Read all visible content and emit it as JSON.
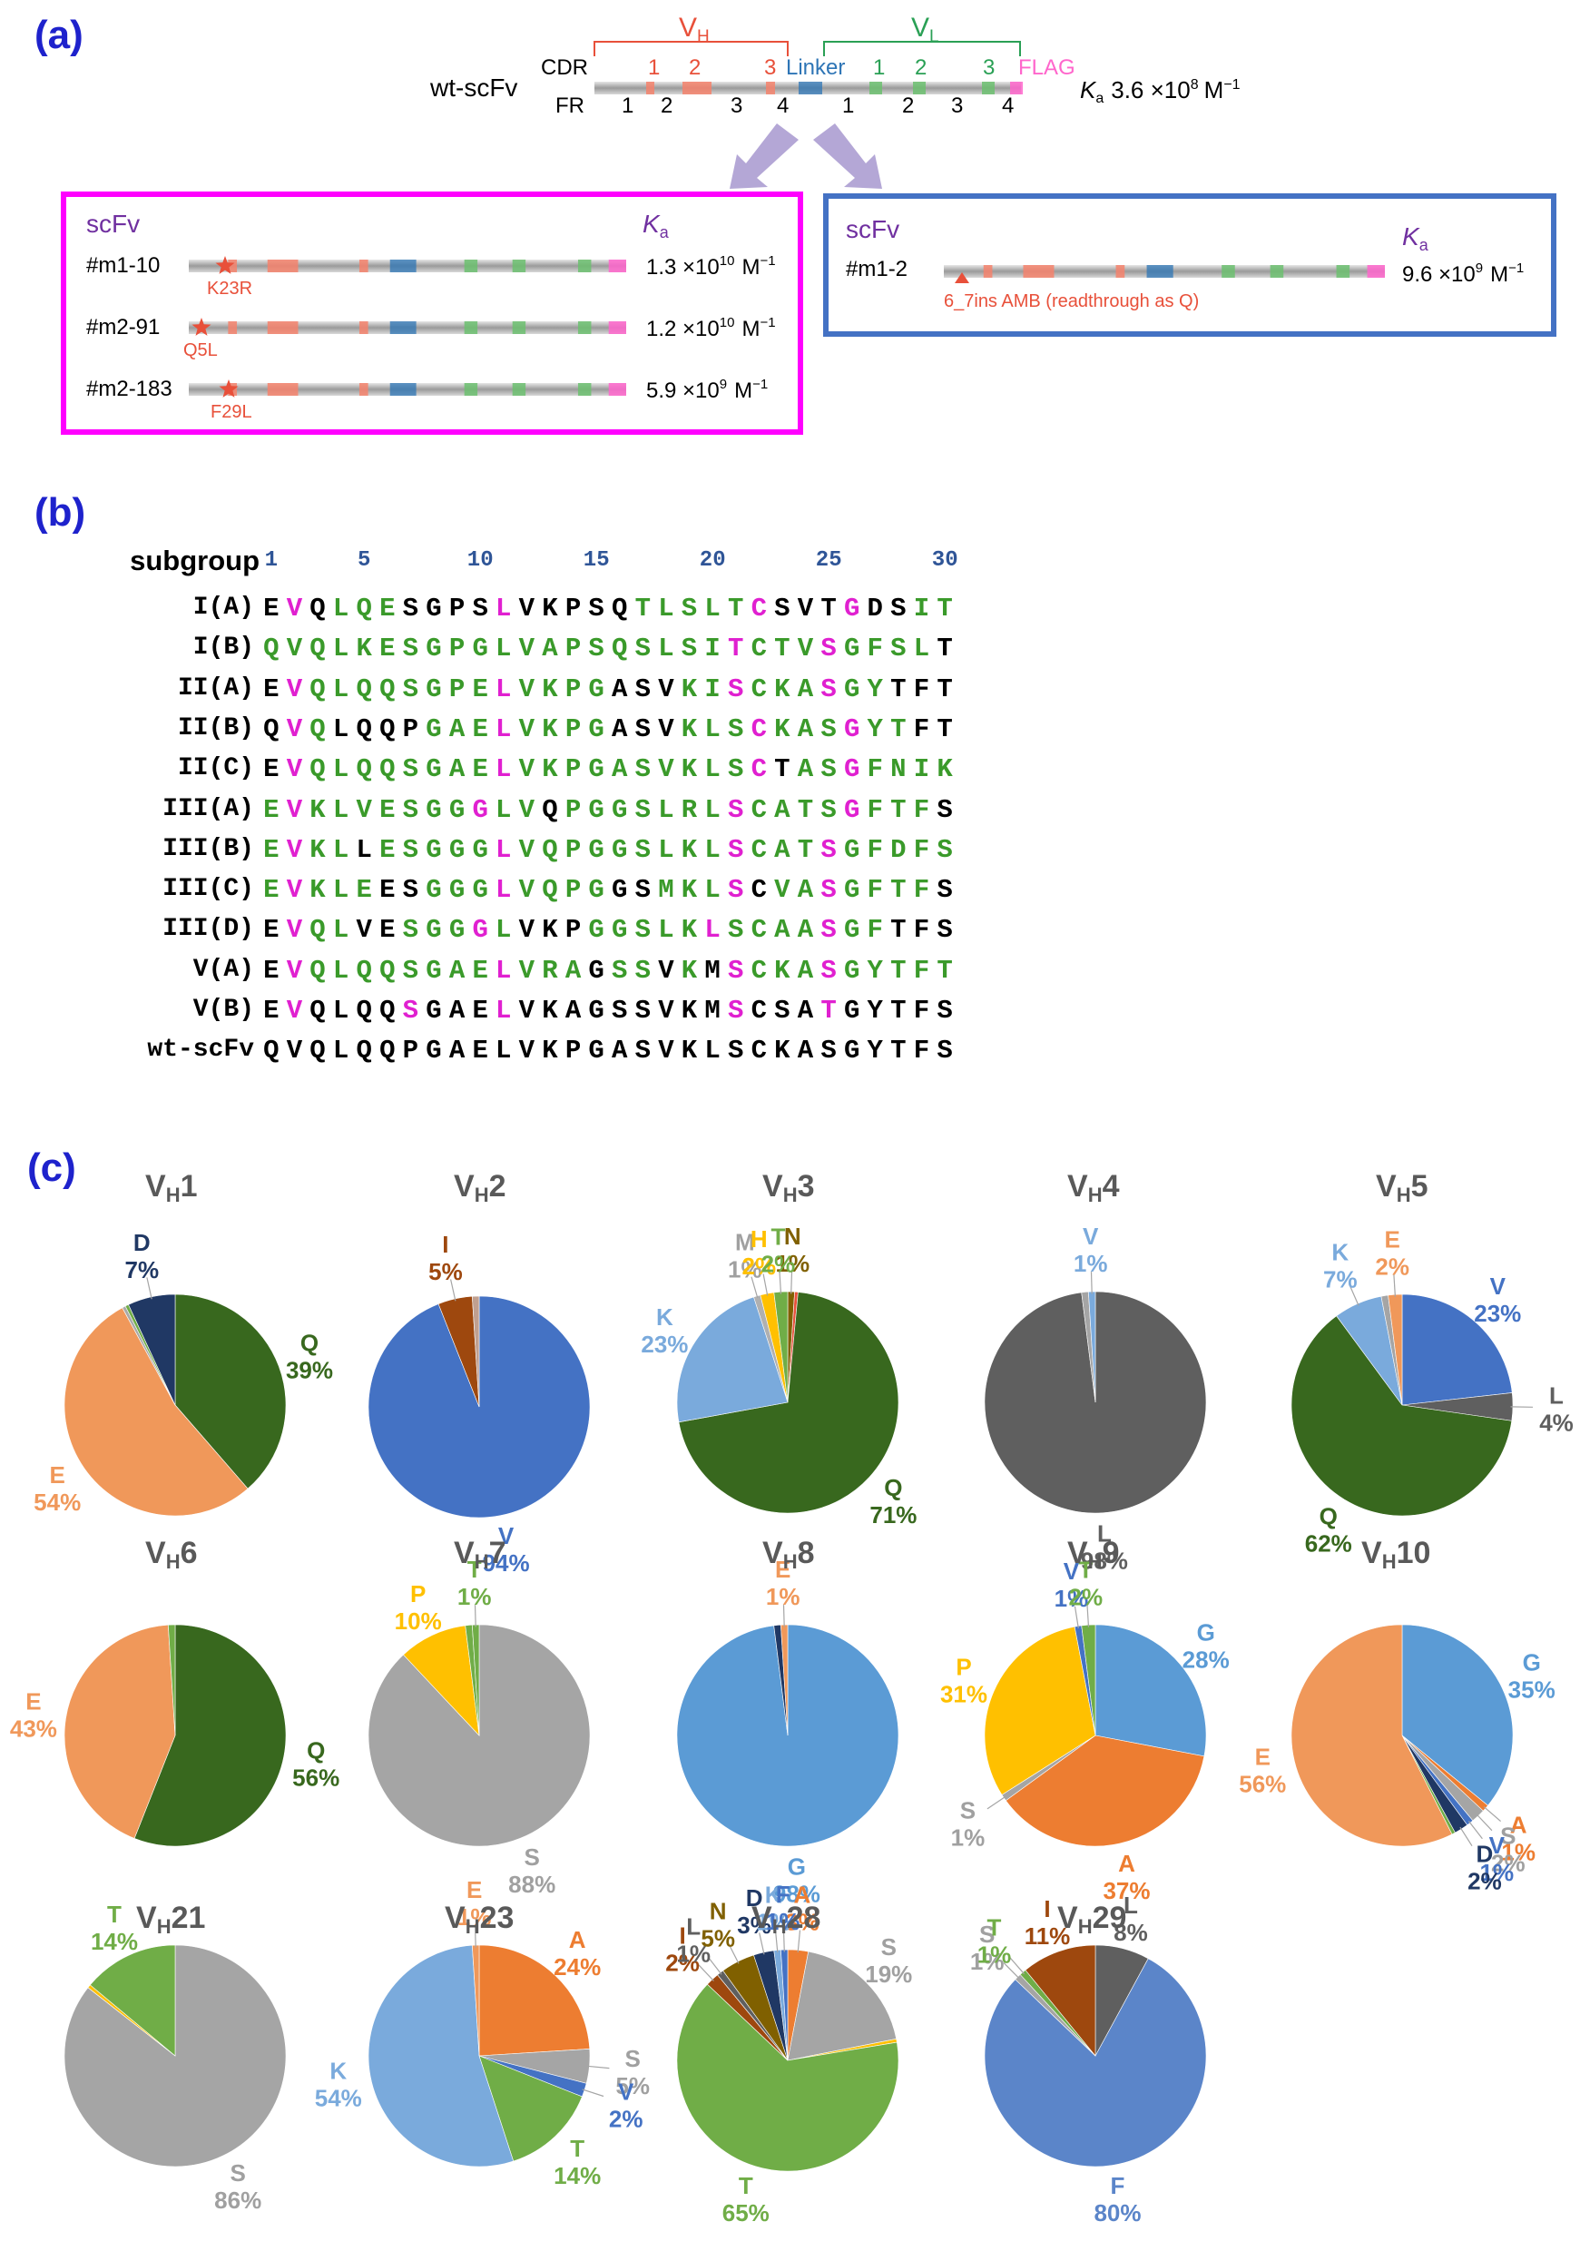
{
  "panels": {
    "a": "(a)",
    "b": "(b)",
    "c": "(c)"
  },
  "panel_a": {
    "wt_label": "wt-scFv",
    "cdr_label": "CDR",
    "fr_label": "FR",
    "vh_label": "V",
    "vh_sub": "H",
    "vl_label": "V",
    "vl_sub": "L",
    "linker_label": "Linker",
    "flag_label": "FLAG",
    "cdr_vh": [
      "1",
      "2",
      "3"
    ],
    "cdr_vl": [
      "1",
      "2",
      "3"
    ],
    "fr_vh": [
      "1",
      "2",
      "3",
      "4"
    ],
    "fr_vl": [
      "1",
      "2",
      "3",
      "4"
    ],
    "wt_ka": "K",
    "wt_ka_sub": "a",
    "wt_ka_value": "3.6 ×10",
    "wt_ka_exp": "8",
    "wt_ka_unit": "M",
    "wt_ka_unit_exp": "−1",
    "left_box": {
      "header": "scFv",
      "ka_header": "K",
      "ka_sub": "a",
      "rows": [
        {
          "name": "#m1-10",
          "mutation": "K23R",
          "mantissa": "1.3 ×10",
          "exp": "10",
          "unit": "M",
          "unit_exp": "−1"
        },
        {
          "name": "#m2-91",
          "mutation": "Q5L",
          "mantissa": "1.2 ×10",
          "exp": "10",
          "unit": "M",
          "unit_exp": "−1"
        },
        {
          "name": "#m2-183",
          "mutation": "F29L",
          "mantissa": "5.9 ×10",
          "exp": "9",
          "unit": "M",
          "unit_exp": "−1"
        }
      ]
    },
    "right_box": {
      "header": "scFv",
      "ka_header": "K",
      "ka_sub": "a",
      "rows": [
        {
          "name": "#m1-2",
          "mutation": "6_7ins AMB (readthrough as Q)",
          "mantissa": "9.6 ×10",
          "exp": "9",
          "unit": "M",
          "unit_exp": "−1"
        }
      ]
    },
    "colors": {
      "cdr": "#f4836c",
      "linker": "#2e75b6",
      "vl_cdr": "#6cc070",
      "flag": "#ff66cc",
      "box_left": "#ff00ff",
      "box_right": "#4472c4",
      "arrow": "#b4a7d6",
      "vh_bracket": "#e8503a",
      "vl_bracket": "#2aa055"
    }
  },
  "panel_b": {
    "header": "subgroup",
    "positions": [
      "1",
      "5",
      "10",
      "15",
      "20",
      "25",
      "30"
    ],
    "rows": [
      {
        "name": "I(A)",
        "seq": "EVQLQESGPSLVKPSQTLSLTCSVTGDSIT",
        "colors": "kmkgggkkkkmkkkkkgggggmkkkmkkgg"
      },
      {
        "name": "I(B)",
        "seq": "QVQLKESGPGLVAPSQSLSITCTVSGFSLT",
        "colors": "ggggggggggggggggggggmgggmggggk"
      },
      {
        "name": "II(A)",
        "seq": "EVQLQQSGPELVKPGASVKISCKASGYTFT",
        "colors": "kmggggggggmggggkkkggmgggmggkkk"
      },
      {
        "name": "II(B)",
        "seq": "QVQLQQPGAELVKPGASVKLSCKASGYTFT",
        "colors": "kmgkkkkgggmggggkkkgggmgggmggkk"
      },
      {
        "name": "II(C)",
        "seq": "EVQLQQSGAELVKPGASVKLSCTASGFNIK",
        "colors": "kmggggggggmggggggggggmkggmgggg"
      },
      {
        "name": "III(A)",
        "seq": "EVKLVESGGGLVQPGGSLRLSCATSGFTFS",
        "colors": "gmgggggggmggkgggggggmggggmgggk"
      },
      {
        "name": "III(B)",
        "seq": "EVKLLESGGGLVQPGGSLKLSCATSGFDFS",
        "colors": "gmggkgggggmgggggggggmgggmggggg"
      },
      {
        "name": "III(C)",
        "seq": "EVKLEESGGGLVQPGGSMKLSCVASGFTFS",
        "colors": "gmgggkkgggmggggkkgggmkggmgggg"
      },
      {
        "name": "III(D)",
        "seq": "EVQLVESGGGLVKPGGSLKLSCAASGFTFS",
        "colors": "kmggkkgggmgkkkgggggmggggmggkk"
      },
      {
        "name": "V(A)",
        "seq": "EVQLQQSGAELVRAGSSVKMSCKASGYTFT",
        "colors": "kmggggggggmgggkggkgkmgggmggggg"
      },
      {
        "name": "V(B)",
        "seq": "EVQLQQSGAELVKAGSSVKMSCSATGYTFS",
        "colors": "kmkkkkmkkkmkkkkkkkkkmkkkmkkkkk"
      },
      {
        "name": "wt-scFv",
        "seq": "QVQLQQPGAELVKPGASVKLSCKASGYTFS",
        "colors": "kkkkkkkkkkkkkkkkkkkkkkkkkkkkkk"
      }
    ]
  },
  "chart_data": [
    {
      "type": "pie",
      "title": "V",
      "title_sub": "H",
      "title_num": "1",
      "slices": [
        {
          "label": "Q",
          "value": 39,
          "color": "#38681e",
          "pct": "39%"
        },
        {
          "label": "E",
          "value": 54,
          "color": "#f0985a",
          "pct": "54%"
        },
        {
          "label": "",
          "value": 0.5,
          "color": "#a9a9a9",
          "pct": ""
        },
        {
          "label": "",
          "value": 0.5,
          "color": "#70ad47",
          "pct": ""
        },
        {
          "label": "D",
          "value": 7,
          "color": "#203864",
          "pct": "7%"
        }
      ]
    },
    {
      "type": "pie",
      "title": "V",
      "title_sub": "H",
      "title_num": "2",
      "slices": [
        {
          "label": "V",
          "value": 94,
          "color": "#4472c4",
          "pct": "94%"
        },
        {
          "label": "I",
          "value": 5,
          "color": "#9e480e",
          "pct": "5%"
        },
        {
          "label": "",
          "value": 1,
          "color": "#c0a090",
          "pct": ""
        }
      ]
    },
    {
      "type": "pie",
      "title": "V",
      "title_sub": "H",
      "title_num": "3",
      "slices": [
        {
          "label": "N",
          "value": 1,
          "color": "#806000",
          "pct": "1%"
        },
        {
          "label": "",
          "value": 0.5,
          "color": "#e8503a",
          "pct": ""
        },
        {
          "label": "Q",
          "value": 71,
          "color": "#38681e",
          "pct": "71%"
        },
        {
          "label": "K",
          "value": 23,
          "color": "#7aaadc",
          "pct": "23%"
        },
        {
          "label": "M",
          "value": 1,
          "color": "#b0b0b0",
          "pct": "1%"
        },
        {
          "label": "H",
          "value": 2,
          "color": "#ffc000",
          "pct": "2%"
        },
        {
          "label": "T",
          "value": 2,
          "color": "#70ad47",
          "pct": "2%"
        }
      ]
    },
    {
      "type": "pie",
      "title": "V",
      "title_sub": "H",
      "title_num": "4",
      "slices": [
        {
          "label": "L",
          "value": 98,
          "color": "#5f5f5f",
          "pct": "98%"
        },
        {
          "label": "",
          "value": 1,
          "color": "#a5a5a5",
          "pct": ""
        },
        {
          "label": "V",
          "value": 1,
          "color": "#7aaadc",
          "pct": "1%"
        }
      ]
    },
    {
      "type": "pie",
      "title": "V",
      "title_sub": "H",
      "title_num": "5",
      "slices": [
        {
          "label": "V",
          "value": 23,
          "color": "#4472c4",
          "pct": "23%"
        },
        {
          "label": "L",
          "value": 4,
          "color": "#5f5f5f",
          "pct": "4%"
        },
        {
          "label": "Q",
          "value": 62,
          "color": "#38681e",
          "pct": "62%"
        },
        {
          "label": "K",
          "value": 7,
          "color": "#7aaadc",
          "pct": "7%"
        },
        {
          "label": "",
          "value": 1,
          "color": "#a5a5a5",
          "pct": ""
        },
        {
          "label": "E",
          "value": 2,
          "color": "#f0985a",
          "pct": "2%"
        }
      ]
    },
    {
      "type": "pie",
      "title": "V",
      "title_sub": "H",
      "title_num": "6",
      "slices": [
        {
          "label": "Q",
          "value": 56,
          "color": "#38681e",
          "pct": "56%"
        },
        {
          "label": "E",
          "value": 43,
          "color": "#f0985a",
          "pct": "43%"
        },
        {
          "label": "",
          "value": 1,
          "color": "#70ad47",
          "pct": ""
        }
      ]
    },
    {
      "type": "pie",
      "title": "V",
      "title_sub": "H",
      "title_num": "7",
      "slices": [
        {
          "label": "S",
          "value": 88,
          "color": "#a5a5a5",
          "pct": "88%"
        },
        {
          "label": "P",
          "value": 10,
          "color": "#ffc000",
          "pct": "10%"
        },
        {
          "label": "",
          "value": 1,
          "color": "#70ad47",
          "pct": ""
        },
        {
          "label": "T",
          "value": 1,
          "color": "#70ad47",
          "pct": "1%"
        }
      ]
    },
    {
      "type": "pie",
      "title": "V",
      "title_sub": "H",
      "title_num": "8",
      "slices": [
        {
          "label": "G",
          "value": 98,
          "color": "#5b9bd5",
          "pct": "98%"
        },
        {
          "label": "",
          "value": 1,
          "color": "#203864",
          "pct": ""
        },
        {
          "label": "E",
          "value": 1,
          "color": "#f0985a",
          "pct": "1%"
        }
      ]
    },
    {
      "type": "pie",
      "title": "V",
      "title_sub": "H",
      "title_num": "9",
      "slices": [
        {
          "label": "G",
          "value": 28,
          "color": "#5b9bd5",
          "pct": "28%"
        },
        {
          "label": "A",
          "value": 37,
          "color": "#ed7d31",
          "pct": "37%"
        },
        {
          "label": "S",
          "value": 1,
          "color": "#a5a5a5",
          "pct": "1%"
        },
        {
          "label": "P",
          "value": 31,
          "color": "#ffc000",
          "pct": "31%"
        },
        {
          "label": "V",
          "value": 1,
          "color": "#4472c4",
          "pct": "1%"
        },
        {
          "label": "T",
          "value": 2,
          "color": "#70ad47",
          "pct": "2%"
        }
      ]
    },
    {
      "type": "pie",
      "title": "V",
      "title_sub": "H",
      "title_num": "10",
      "slices": [
        {
          "label": "G",
          "value": 35,
          "color": "#5b9bd5",
          "pct": "35%"
        },
        {
          "label": "A",
          "value": 1,
          "color": "#ed7d31",
          "pct": "1%"
        },
        {
          "label": "S",
          "value": 2,
          "color": "#a5a5a5",
          "pct": "2%"
        },
        {
          "label": "V",
          "value": 1,
          "color": "#4472c4",
          "pct": "1%"
        },
        {
          "label": "D",
          "value": 2,
          "color": "#203864",
          "pct": "2%"
        },
        {
          "label": "",
          "value": 0.5,
          "color": "#70ad47",
          "pct": ""
        },
        {
          "label": "E",
          "value": 56,
          "color": "#f0985a",
          "pct": "56%"
        }
      ]
    },
    {
      "type": "pie",
      "title": "V",
      "title_sub": "H",
      "title_num": "21",
      "slices": [
        {
          "label": "S",
          "value": 86,
          "color": "#a5a5a5",
          "pct": "86%"
        },
        {
          "label": "",
          "value": 0.5,
          "color": "#ffc000",
          "pct": ""
        },
        {
          "label": "T",
          "value": 14,
          "color": "#70ad47",
          "pct": "14%"
        }
      ]
    },
    {
      "type": "pie",
      "title": "V",
      "title_sub": "H",
      "title_num": "23",
      "slices": [
        {
          "label": "A",
          "value": 24,
          "color": "#ed7d31",
          "pct": "24%"
        },
        {
          "label": "S",
          "value": 5,
          "color": "#a5a5a5",
          "pct": "5%"
        },
        {
          "label": "V",
          "value": 2,
          "color": "#4472c4",
          "pct": "2%"
        },
        {
          "label": "T",
          "value": 14,
          "color": "#70ad47",
          "pct": "14%"
        },
        {
          "label": "K",
          "value": 54,
          "color": "#7aaadc",
          "pct": "54%"
        },
        {
          "label": "E",
          "value": 1,
          "color": "#f0985a",
          "pct": "1%"
        }
      ]
    },
    {
      "type": "pie",
      "title": "V",
      "title_sub": "H",
      "title_num": "28",
      "slices": [
        {
          "label": "A",
          "value": 3,
          "color": "#ed7d31",
          "pct": "3%"
        },
        {
          "label": "S",
          "value": 19,
          "color": "#a5a5a5",
          "pct": "19%"
        },
        {
          "label": "",
          "value": 0.5,
          "color": "#ffc000",
          "pct": ""
        },
        {
          "label": "T",
          "value": 65,
          "color": "#70ad47",
          "pct": "65%"
        },
        {
          "label": "I",
          "value": 2,
          "color": "#9e480e",
          "pct": "2%"
        },
        {
          "label": "L",
          "value": 1,
          "color": "#5f5f5f",
          "pct": "1%"
        },
        {
          "label": "N",
          "value": 5,
          "color": "#806000",
          "pct": "5%"
        },
        {
          "label": "D",
          "value": 3,
          "color": "#203864",
          "pct": "3%"
        },
        {
          "label": "K",
          "value": 1,
          "color": "#7aaadc",
          "pct": "1%"
        },
        {
          "label": "F",
          "value": 1,
          "color": "#4472c4",
          "pct": "1%"
        }
      ]
    },
    {
      "type": "pie",
      "title": "V",
      "title_sub": "H",
      "title_num": "29",
      "slices": [
        {
          "label": "L",
          "value": 8,
          "color": "#5f5f5f",
          "pct": "8%"
        },
        {
          "label": "F",
          "value": 80,
          "color": "#5b85c9",
          "pct": "80%"
        },
        {
          "label": "S",
          "value": 1,
          "color": "#a5a5a5",
          "pct": "1%"
        },
        {
          "label": "T",
          "value": 1,
          "color": "#70ad47",
          "pct": "1%"
        },
        {
          "label": "I",
          "value": 11,
          "color": "#9e480e",
          "pct": "11%"
        }
      ]
    }
  ]
}
